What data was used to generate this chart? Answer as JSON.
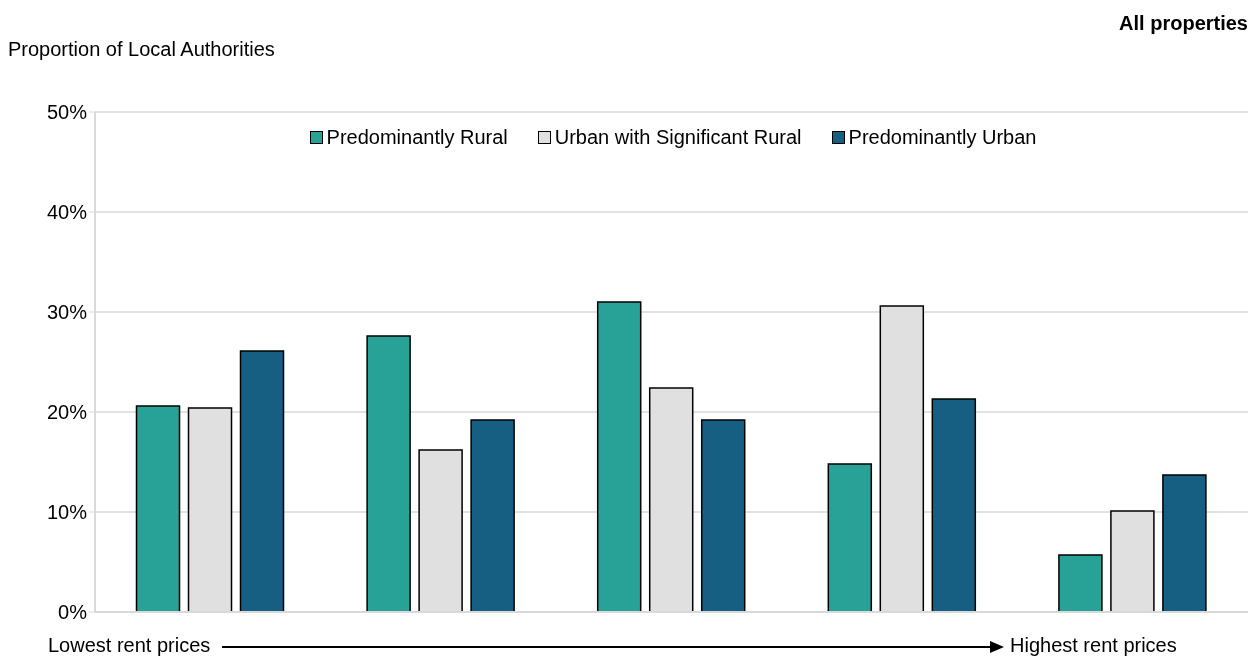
{
  "chart_data": {
    "type": "bar",
    "title": "All properties",
    "ylabel": "Proportion of Local Authorities",
    "annotations": [
      "Lowest rent prices",
      "Highest rent prices"
    ],
    "categories": [
      null,
      null,
      null,
      null,
      null
    ],
    "series": [
      {
        "name": "Predominantly Rural",
        "color": "#28a197",
        "values": [
          20.6,
          27.6,
          31.0,
          14.8,
          5.7
        ]
      },
      {
        "name": "Urban with Significant Rural",
        "color": "#e0e0e0",
        "values": [
          20.4,
          16.2,
          22.4,
          30.6,
          10.1
        ]
      },
      {
        "name": "Predominantly Urban",
        "color": "#165e82",
        "values": [
          26.1,
          19.2,
          19.2,
          21.3,
          13.7
        ]
      }
    ],
    "ylim": [
      0,
      50
    ],
    "yticks": [
      {
        "value": 0,
        "label": "0%"
      },
      {
        "value": 10,
        "label": "10%"
      },
      {
        "value": 20,
        "label": "20%"
      },
      {
        "value": 30,
        "label": "30%"
      },
      {
        "value": 40,
        "label": "40%"
      },
      {
        "value": 50,
        "label": "50%"
      }
    ],
    "grid": "y",
    "legend": "top"
  }
}
